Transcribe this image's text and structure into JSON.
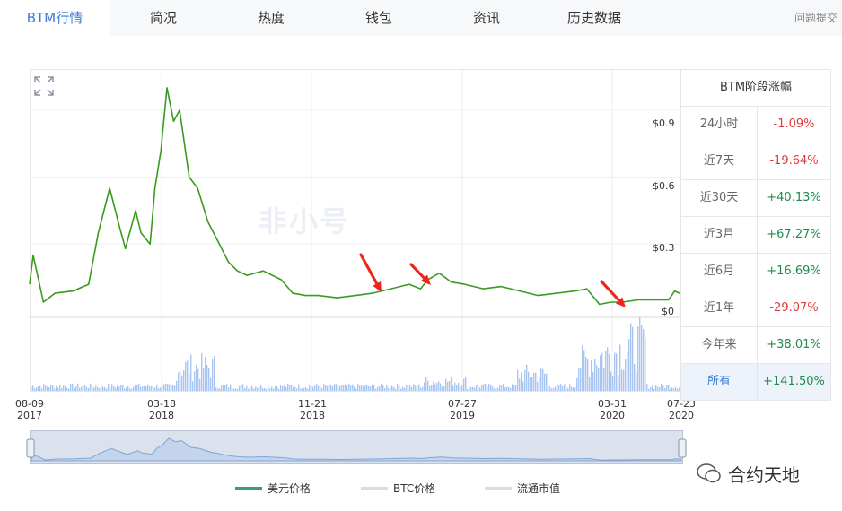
{
  "tabs": [
    {
      "label": "BTM行情",
      "active": true
    },
    {
      "label": "简况"
    },
    {
      "label": "热度"
    },
    {
      "label": "钱包"
    },
    {
      "label": "资讯"
    },
    {
      "label": "历史数据"
    }
  ],
  "feedback": "问题提交",
  "watermark": "非小号",
  "table": {
    "title": "BTM阶段涨幅",
    "rows": [
      {
        "label": "24小时",
        "value": "-1.09%"
      },
      {
        "label": "近7天",
        "value": "-19.64%"
      },
      {
        "label": "近30天",
        "value": "+40.13%"
      },
      {
        "label": "近3月",
        "value": "+67.27%"
      },
      {
        "label": "近6月",
        "value": "+16.69%"
      },
      {
        "label": "近1年",
        "value": "-29.07%"
      },
      {
        "label": "今年来",
        "value": "+38.01%"
      },
      {
        "label": "所有",
        "value": "+141.50%"
      }
    ]
  },
  "legend": [
    {
      "label": "美元价格",
      "color": "#3f9a6e"
    },
    {
      "label": "BTC价格",
      "color": "#d9dbe9"
    },
    {
      "label": "流通市值",
      "color": "#d9dbe9"
    }
  ],
  "wechat_label": "合约天地",
  "chart_data": {
    "type": "line",
    "y_ticks": [
      "$0.9",
      "$0.6",
      "$0.3",
      "$0"
    ],
    "x_ticks": [
      {
        "date": "08-09",
        "year": "2017"
      },
      {
        "date": "03-18",
        "year": "2018"
      },
      {
        "date": "11-21",
        "year": "2018"
      },
      {
        "date": "07-27",
        "year": "2019"
      },
      {
        "date": "03-31",
        "year": "2020"
      },
      {
        "date": "07-23",
        "year": "2020"
      }
    ],
    "ylim": [
      0,
      1.08
    ],
    "x_range": [
      "2017-08-09",
      "2020-07-23"
    ],
    "series": [
      {
        "name": "美元价格",
        "color": "#3a9a1f",
        "x": [
          "2017-08-09",
          "2017-08-15",
          "2017-09-01",
          "2017-09-20",
          "2017-10-20",
          "2017-11-15",
          "2017-12-01",
          "2017-12-20",
          "2018-01-05",
          "2018-01-15",
          "2018-02-01",
          "2018-02-10",
          "2018-02-25",
          "2018-03-05",
          "2018-03-15",
          "2018-03-25",
          "2018-04-05",
          "2018-04-15",
          "2018-05-01",
          "2018-05-15",
          "2018-06-01",
          "2018-06-20",
          "2018-07-05",
          "2018-07-20",
          "2018-08-05",
          "2018-09-01",
          "2018-10-01",
          "2018-10-20",
          "2018-11-10",
          "2018-12-01",
          "2019-01-01",
          "2019-02-01",
          "2019-03-01",
          "2019-04-01",
          "2019-05-01",
          "2019-05-20",
          "2019-06-01",
          "2019-06-20",
          "2019-07-10",
          "2019-08-01",
          "2019-09-01",
          "2019-10-01",
          "2019-11-01",
          "2019-12-01",
          "2020-01-01",
          "2020-02-01",
          "2020-02-20",
          "2020-03-12",
          "2020-03-31",
          "2020-04-20",
          "2020-05-15",
          "2020-06-15",
          "2020-07-05",
          "2020-07-15",
          "2020-07-23"
        ],
        "values": [
          0.12,
          0.25,
          0.04,
          0.08,
          0.09,
          0.12,
          0.35,
          0.55,
          0.38,
          0.28,
          0.45,
          0.35,
          0.3,
          0.55,
          0.72,
          1.0,
          0.85,
          0.9,
          0.6,
          0.55,
          0.4,
          0.3,
          0.22,
          0.18,
          0.16,
          0.18,
          0.14,
          0.08,
          0.07,
          0.07,
          0.06,
          0.07,
          0.08,
          0.1,
          0.12,
          0.1,
          0.14,
          0.17,
          0.13,
          0.12,
          0.1,
          0.11,
          0.09,
          0.07,
          0.08,
          0.09,
          0.1,
          0.03,
          0.04,
          0.04,
          0.05,
          0.05,
          0.05,
          0.09,
          0.08
        ]
      }
    ]
  }
}
